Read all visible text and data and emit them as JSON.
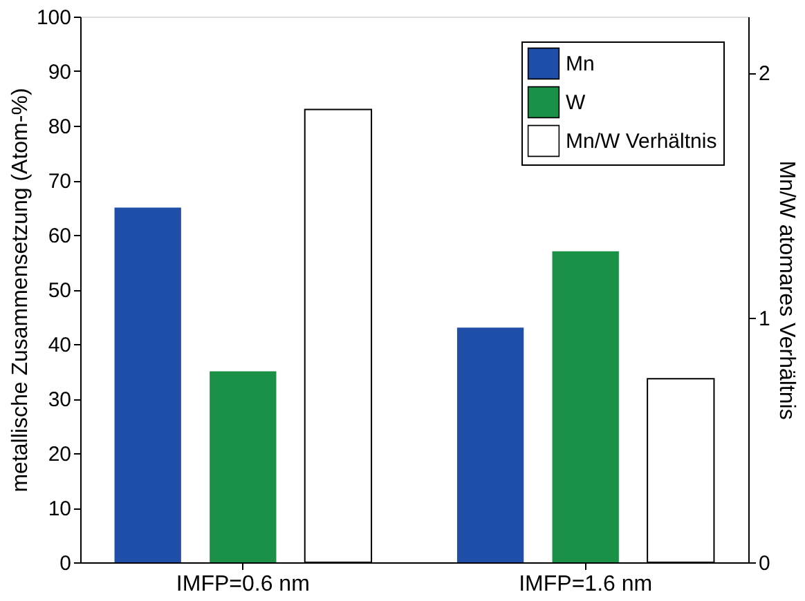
{
  "chart_data": {
    "type": "bar",
    "ylabel": "metallische Zusammensetzung (Atom-%)",
    "y2label": "Mn/W atomares Verhältnis",
    "categories": [
      "IMFP=0.6 nm",
      "IMFP=1.6 nm"
    ],
    "series": [
      {
        "name": "Mn",
        "color": "#1f4fa8",
        "values": [
          65,
          43
        ]
      },
      {
        "name": "W",
        "color": "#1b9148",
        "values": [
          35,
          57
        ]
      },
      {
        "name": "Mn/W Verhältnis",
        "color": "#ffffff",
        "values": [
          1.85,
          0.75
        ],
        "axis": "y2"
      }
    ],
    "ylim": [
      0,
      100
    ],
    "yticks": [
      0,
      10,
      20,
      30,
      40,
      50,
      60,
      70,
      80,
      90,
      100
    ],
    "y2lim": [
      0,
      2.23
    ],
    "y2ticks": [
      0,
      1,
      2
    ],
    "legend": "top right",
    "grid": false
  }
}
